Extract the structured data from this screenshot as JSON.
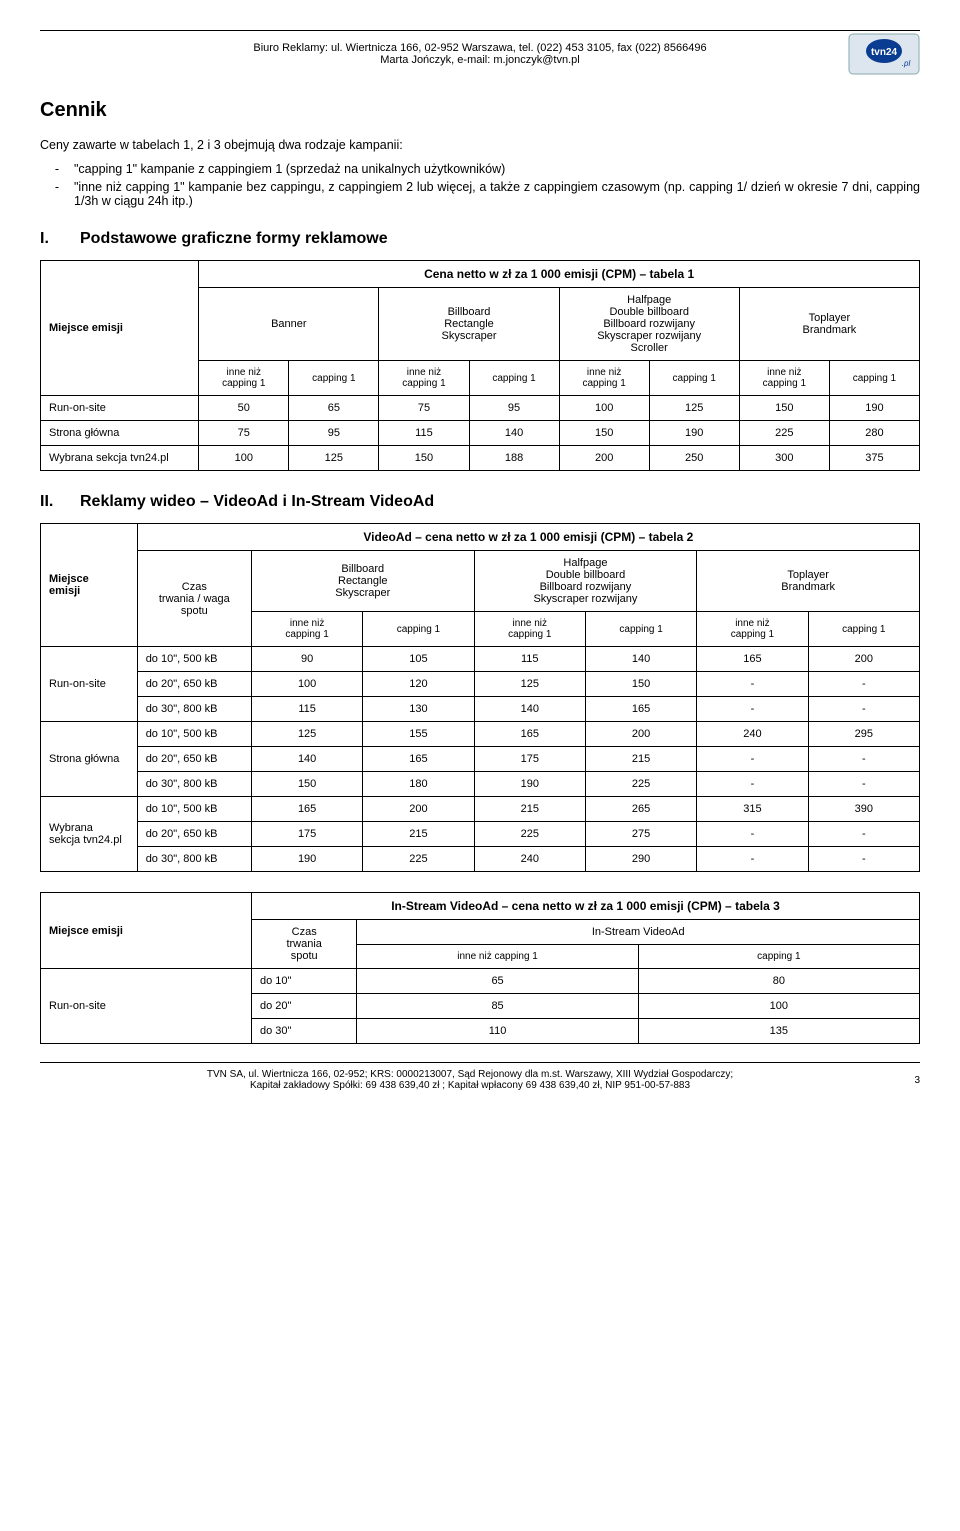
{
  "header": {
    "line1": "Biuro Reklamy: ul. Wiertnicza 166, 02-952 Warszawa, tel. (022) 453 3105, fax (022) 8566496",
    "line2": "Marta Jończyk, e-mail: m.jonczyk@tvn.pl",
    "logo_text": "tvn24.pl"
  },
  "title": "Cennik",
  "intro": "Ceny zawarte w tabelach 1, 2 i 3 obejmują dwa rodzaje kampanii:",
  "bullets": [
    "\"capping 1\" kampanie z cappingiem 1 (sprzedaż na unikalnych użytkowników)",
    "\"inne niż capping 1\" kampanie bez cappingu, z cappingiem 2 lub więcej, a także z cappingiem czasowym (np. capping 1/ dzień w okresie 7 dni, capping 1/3h w ciągu 24h itp.)"
  ],
  "section1": {
    "num": "I.",
    "title": "Podstawowe graficzne formy reklamowe"
  },
  "t1": {
    "title": "Cena netto w zł za 1 000 emisji (CPM) – tabela 1",
    "row_label_hdr": "Miejsce emisji",
    "col_groups": [
      "Banner",
      "Billboard\nRectangle\nSkyscraper",
      "Halfpage\nDouble billboard\nBillboard rozwijany\nSkyscraper rozwijany\nScroller",
      "Toplayer\nBrandmark"
    ],
    "sub_inne": "inne niż\ncapping 1",
    "sub_cap": "capping 1",
    "rows": [
      {
        "label": "Run-on-site",
        "v": [
          "50",
          "65",
          "75",
          "95",
          "100",
          "125",
          "150",
          "190"
        ]
      },
      {
        "label": "Strona główna",
        "v": [
          "75",
          "95",
          "115",
          "140",
          "150",
          "190",
          "225",
          "280"
        ]
      },
      {
        "label": "Wybrana sekcja tvn24.pl",
        "v": [
          "100",
          "125",
          "150",
          "188",
          "200",
          "250",
          "300",
          "375"
        ]
      }
    ]
  },
  "section2": {
    "num": "II.",
    "title": "Reklamy wideo – VideoAd i In-Stream VideoAd"
  },
  "t2": {
    "title": "VideoAd – cena netto w zł za 1 000 emisji (CPM) – tabela 2",
    "row_label_hdr": "Miejsce\nemisji",
    "czas_hdr": "Czas\ntrwania / waga\nspotu",
    "col_groups": [
      "Billboard\nRectangle\nSkyscraper",
      "Halfpage\nDouble billboard\nBillboard rozwijany\nSkyscraper rozwijany",
      "Toplayer\nBrandmark"
    ],
    "sub_inne": "inne niż\ncapping 1",
    "sub_cap": "capping 1",
    "groups": [
      {
        "label": "Run-on-site",
        "rows": [
          {
            "c": "do 10\", 500 kB",
            "v": [
              "90",
              "105",
              "115",
              "140",
              "165",
              "200"
            ]
          },
          {
            "c": "do 20\", 650 kB",
            "v": [
              "100",
              "120",
              "125",
              "150",
              "-",
              "-"
            ]
          },
          {
            "c": "do 30\", 800 kB",
            "v": [
              "115",
              "130",
              "140",
              "165",
              "-",
              "-"
            ]
          }
        ]
      },
      {
        "label": "Strona główna",
        "rows": [
          {
            "c": "do 10\", 500 kB",
            "v": [
              "125",
              "155",
              "165",
              "200",
              "240",
              "295"
            ]
          },
          {
            "c": "do 20\", 650 kB",
            "v": [
              "140",
              "165",
              "175",
              "215",
              "-",
              "-"
            ]
          },
          {
            "c": "do 30\", 800 kB",
            "v": [
              "150",
              "180",
              "190",
              "225",
              "-",
              "-"
            ]
          }
        ]
      },
      {
        "label": "Wybrana\nsekcja tvn24.pl",
        "rows": [
          {
            "c": "do 10\", 500 kB",
            "v": [
              "165",
              "200",
              "215",
              "265",
              "315",
              "390"
            ]
          },
          {
            "c": "do 20\", 650 kB",
            "v": [
              "175",
              "215",
              "225",
              "275",
              "-",
              "-"
            ]
          },
          {
            "c": "do 30\", 800 kB",
            "v": [
              "190",
              "225",
              "240",
              "290",
              "-",
              "-"
            ]
          }
        ]
      }
    ]
  },
  "t3": {
    "title": "In-Stream VideoAd – cena netto w zł za 1 000 emisji (CPM) – tabela 3",
    "row_label_hdr": "Miejsce emisji",
    "czas_hdr": "Czas\ntrwania\nspotu",
    "col_hdr": "In-Stream VideoAd",
    "sub_inne": "inne niż capping 1",
    "sub_cap": "capping 1",
    "group_label": "Run-on-site",
    "rows": [
      {
        "c": "do 10\"",
        "v": [
          "65",
          "80"
        ]
      },
      {
        "c": "do 20\"",
        "v": [
          "85",
          "100"
        ]
      },
      {
        "c": "do 30\"",
        "v": [
          "110",
          "135"
        ]
      }
    ]
  },
  "footer": {
    "line1": "TVN SA, ul. Wiertnicza 166, 02-952; KRS: 0000213007, Sąd Rejonowy dla m.st. Warszawy, XIII Wydział Gospodarczy;",
    "line2": "Kapitał zakładowy Spółki: 69 438 639,40  zł ; Kapitał wpłacony 69 438 639,40 zł, NIP 951-00-57-883",
    "page": "3"
  }
}
